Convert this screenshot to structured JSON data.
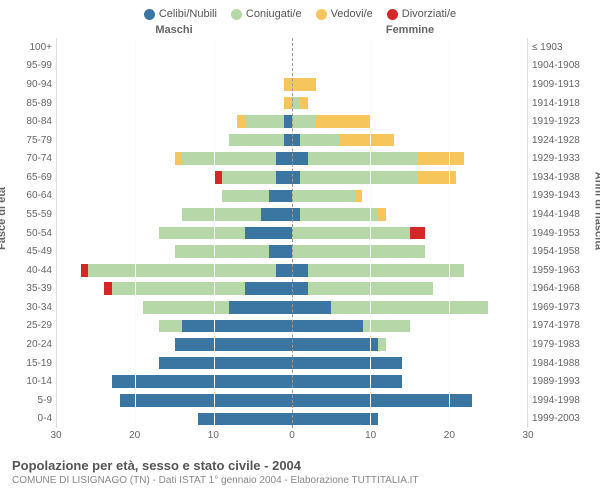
{
  "legend": [
    {
      "label": "Celibi/Nubili",
      "color": "#3b76a3"
    },
    {
      "label": "Coniugati/e",
      "color": "#b6d7a8"
    },
    {
      "label": "Vedovi/e",
      "color": "#f6c55b"
    },
    {
      "label": "Divorziati/e",
      "color": "#d62728"
    }
  ],
  "header_male": "Maschi",
  "header_female": "Femmine",
  "axis_left": "Fasce di età",
  "axis_right": "Anni di nascita",
  "title": "Popolazione per età, sesso e stato civile - 2004",
  "subtitle": "COMUNE DI LISIGNAGO (TN) - Dati ISTAT 1° gennaio 2004 - Elaborazione TUTTITALIA.IT",
  "xmax": 30,
  "xticks": [
    30,
    20,
    10,
    0,
    10,
    20,
    30
  ],
  "colors": {
    "single": "#3b76a3",
    "married": "#b6d7a8",
    "widowed": "#f6c55b",
    "divorced": "#d62728",
    "grid": "#fafafa",
    "centerline": "#999"
  },
  "cohorts": [
    {
      "age": "100+",
      "birth": "≤ 1903",
      "m": {
        "s": 0,
        "c": 0,
        "w": 0,
        "d": 0
      },
      "f": {
        "s": 0,
        "c": 0,
        "w": 0,
        "d": 0
      }
    },
    {
      "age": "95-99",
      "birth": "1904-1908",
      "m": {
        "s": 0,
        "c": 0,
        "w": 0,
        "d": 0
      },
      "f": {
        "s": 0,
        "c": 0,
        "w": 0,
        "d": 0
      }
    },
    {
      "age": "90-94",
      "birth": "1909-1913",
      "m": {
        "s": 0,
        "c": 0,
        "w": 1,
        "d": 0
      },
      "f": {
        "s": 0,
        "c": 0,
        "w": 3,
        "d": 0
      }
    },
    {
      "age": "85-89",
      "birth": "1914-1918",
      "m": {
        "s": 0,
        "c": 0,
        "w": 1,
        "d": 0
      },
      "f": {
        "s": 0,
        "c": 1,
        "w": 1,
        "d": 0
      }
    },
    {
      "age": "80-84",
      "birth": "1919-1923",
      "m": {
        "s": 1,
        "c": 5,
        "w": 1,
        "d": 0
      },
      "f": {
        "s": 0,
        "c": 3,
        "w": 7,
        "d": 0
      }
    },
    {
      "age": "75-79",
      "birth": "1924-1928",
      "m": {
        "s": 1,
        "c": 7,
        "w": 0,
        "d": 0
      },
      "f": {
        "s": 1,
        "c": 5,
        "w": 7,
        "d": 0
      }
    },
    {
      "age": "70-74",
      "birth": "1929-1933",
      "m": {
        "s": 2,
        "c": 12,
        "w": 1,
        "d": 0
      },
      "f": {
        "s": 2,
        "c": 14,
        "w": 6,
        "d": 0
      }
    },
    {
      "age": "65-69",
      "birth": "1934-1938",
      "m": {
        "s": 2,
        "c": 7,
        "w": 0,
        "d": 1
      },
      "f": {
        "s": 1,
        "c": 15,
        "w": 5,
        "d": 0
      }
    },
    {
      "age": "60-64",
      "birth": "1939-1943",
      "m": {
        "s": 3,
        "c": 6,
        "w": 0,
        "d": 0
      },
      "f": {
        "s": 0,
        "c": 8,
        "w": 1,
        "d": 0
      }
    },
    {
      "age": "55-59",
      "birth": "1944-1948",
      "m": {
        "s": 4,
        "c": 10,
        "w": 0,
        "d": 0
      },
      "f": {
        "s": 1,
        "c": 10,
        "w": 1,
        "d": 0
      }
    },
    {
      "age": "50-54",
      "birth": "1949-1953",
      "m": {
        "s": 6,
        "c": 11,
        "w": 0,
        "d": 0
      },
      "f": {
        "s": 0,
        "c": 15,
        "w": 0,
        "d": 2
      }
    },
    {
      "age": "45-49",
      "birth": "1954-1958",
      "m": {
        "s": 3,
        "c": 12,
        "w": 0,
        "d": 0
      },
      "f": {
        "s": 0,
        "c": 17,
        "w": 0,
        "d": 0
      }
    },
    {
      "age": "40-44",
      "birth": "1959-1963",
      "m": {
        "s": 2,
        "c": 24,
        "w": 0,
        "d": 1
      },
      "f": {
        "s": 2,
        "c": 20,
        "w": 0,
        "d": 0
      }
    },
    {
      "age": "35-39",
      "birth": "1964-1968",
      "m": {
        "s": 6,
        "c": 17,
        "w": 0,
        "d": 1
      },
      "f": {
        "s": 2,
        "c": 16,
        "w": 0,
        "d": 0
      }
    },
    {
      "age": "30-34",
      "birth": "1969-1973",
      "m": {
        "s": 8,
        "c": 11,
        "w": 0,
        "d": 0
      },
      "f": {
        "s": 5,
        "c": 20,
        "w": 0,
        "d": 0
      }
    },
    {
      "age": "25-29",
      "birth": "1974-1978",
      "m": {
        "s": 14,
        "c": 3,
        "w": 0,
        "d": 0
      },
      "f": {
        "s": 9,
        "c": 6,
        "w": 0,
        "d": 0
      }
    },
    {
      "age": "20-24",
      "birth": "1979-1983",
      "m": {
        "s": 15,
        "c": 0,
        "w": 0,
        "d": 0
      },
      "f": {
        "s": 11,
        "c": 1,
        "w": 0,
        "d": 0
      }
    },
    {
      "age": "15-19",
      "birth": "1984-1988",
      "m": {
        "s": 17,
        "c": 0,
        "w": 0,
        "d": 0
      },
      "f": {
        "s": 14,
        "c": 0,
        "w": 0,
        "d": 0
      }
    },
    {
      "age": "10-14",
      "birth": "1989-1993",
      "m": {
        "s": 23,
        "c": 0,
        "w": 0,
        "d": 0
      },
      "f": {
        "s": 14,
        "c": 0,
        "w": 0,
        "d": 0
      }
    },
    {
      "age": "5-9",
      "birth": "1994-1998",
      "m": {
        "s": 22,
        "c": 0,
        "w": 0,
        "d": 0
      },
      "f": {
        "s": 23,
        "c": 0,
        "w": 0,
        "d": 0
      }
    },
    {
      "age": "0-4",
      "birth": "1999-2003",
      "m": {
        "s": 12,
        "c": 0,
        "w": 0,
        "d": 0
      },
      "f": {
        "s": 11,
        "c": 0,
        "w": 0,
        "d": 0
      }
    }
  ]
}
